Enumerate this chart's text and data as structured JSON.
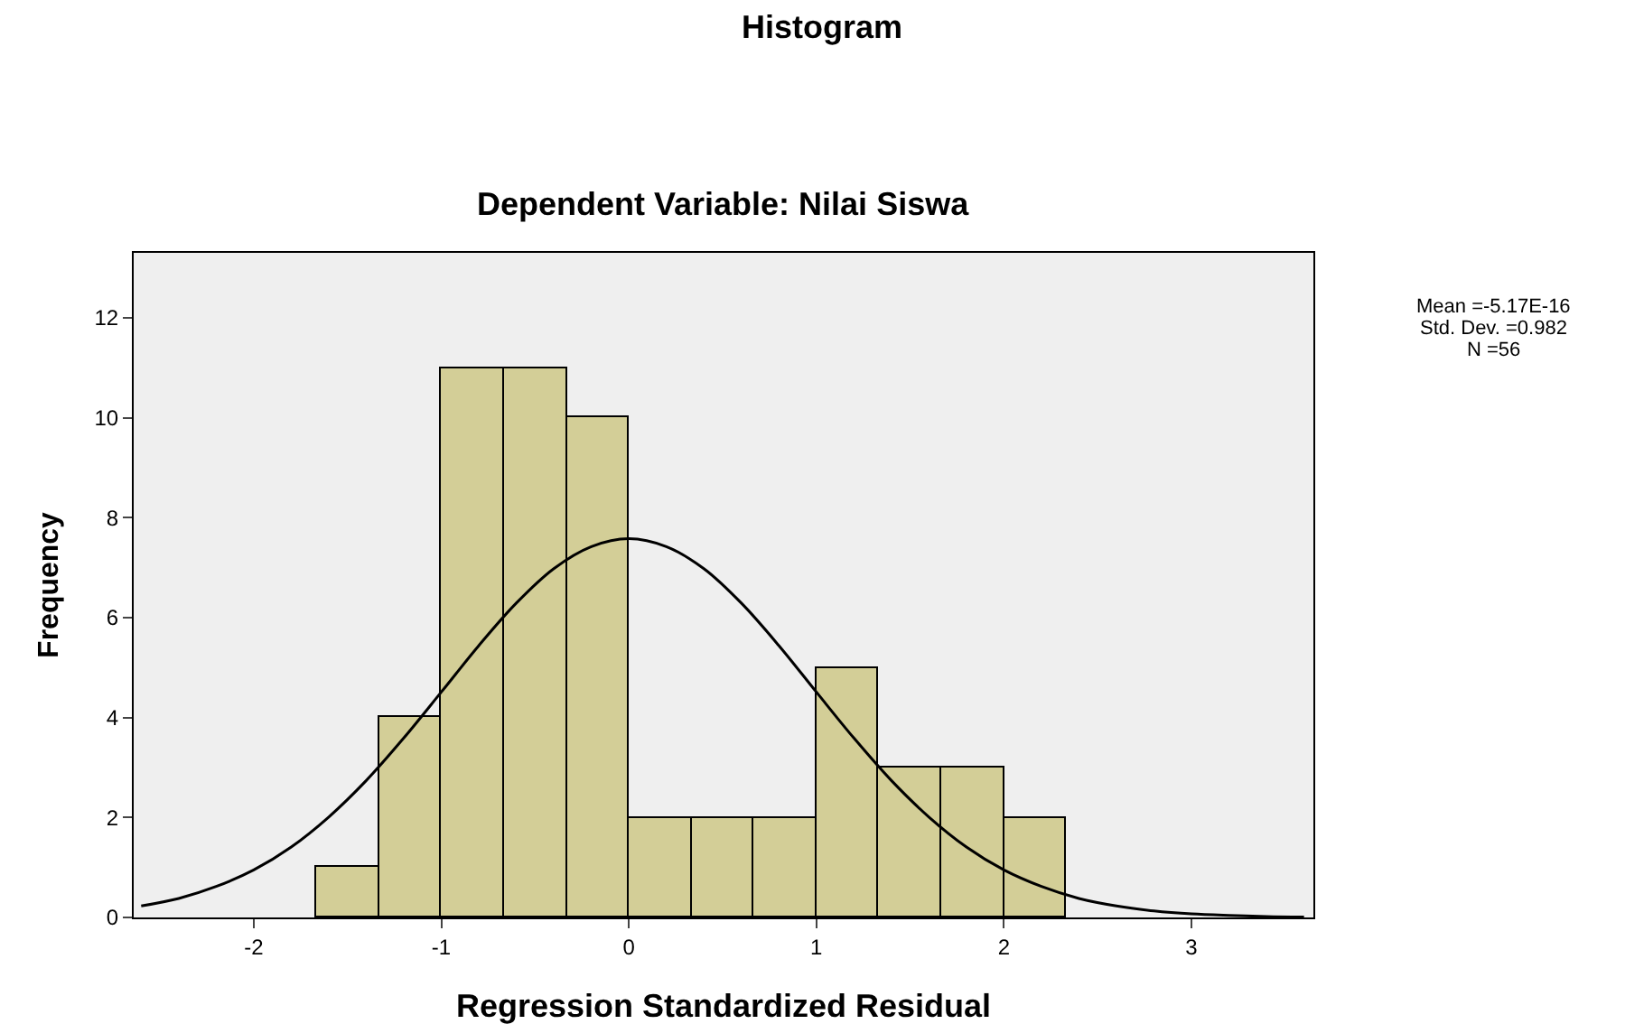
{
  "chart_data": {
    "type": "histogram",
    "title": "Histogram",
    "subtitle": "Dependent Variable: Nilai Siswa",
    "xlabel": "Regression Standardized Residual",
    "ylabel": "Frequency",
    "bins": [
      -1.667,
      -1.333,
      -1,
      -0.667,
      -0.333,
      0,
      0.333,
      0.667,
      1,
      1.333,
      1.667,
      2,
      2.333
    ],
    "values": [
      1,
      4,
      11,
      11,
      10,
      2,
      2,
      2,
      5,
      3,
      3,
      2
    ],
    "color": "#d3ce97",
    "series": [
      {
        "type": "line",
        "color": "#000000",
        "x": [
          -2.6,
          -2.4,
          -2.2,
          -2,
          -1.8,
          -1.6,
          -1.4,
          -1.2,
          -1,
          -0.8,
          -0.6,
          -0.4,
          -0.2,
          0,
          0.2,
          0.4,
          0.6,
          0.8,
          1,
          1.2,
          1.4,
          1.6,
          1.8,
          2,
          2.2,
          2.4,
          2.6,
          2.8,
          3,
          3.2,
          3.4,
          3.6
        ],
        "values": [
          0.23,
          0.38,
          0.62,
          0.95,
          1.41,
          2.01,
          2.74,
          3.59,
          4.51,
          5.44,
          6.29,
          6.98,
          7.42,
          7.58,
          7.42,
          6.98,
          6.29,
          5.44,
          4.51,
          3.59,
          2.74,
          2.01,
          1.41,
          0.95,
          0.62,
          0.38,
          0.23,
          0.13,
          0.07,
          0.04,
          0.02,
          0.01
        ]
      }
    ],
    "xlim": [
      -2.64,
      3.65
    ],
    "xticks": [
      -2,
      -1,
      0,
      1,
      2,
      3
    ],
    "ylim": [
      0,
      13.3
    ],
    "yticks": [
      0,
      2,
      4,
      6,
      8,
      10,
      12
    ],
    "grid": false,
    "annotations": [
      "Mean =-5.17E-16",
      "Std. Dev. =0.982",
      "N =56"
    ]
  }
}
